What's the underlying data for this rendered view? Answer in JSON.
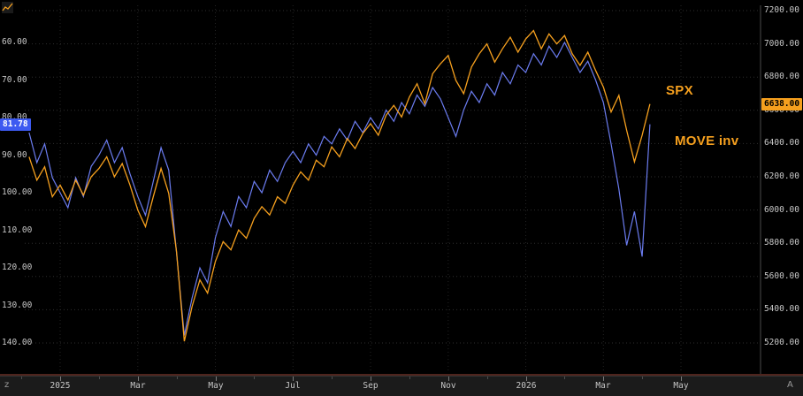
{
  "chart": {
    "series_labels": {
      "spx": "SPX",
      "move": "MOVE inv"
    },
    "last_values": {
      "spx": "6638.00",
      "move": "81.78"
    },
    "colors": {
      "spx_line": "#f6a01e",
      "move_line": "#6b7cf0",
      "label_text": "#f6a01e",
      "spx_box_bg": "#f6a01e",
      "spx_box_text": "#000000",
      "move_box_bg": "#3d5af1",
      "move_box_text": "#ffffff",
      "background": "#000000",
      "grid": "#2e2e2e",
      "axis_text": "#c8c8c8"
    },
    "corner_buttons": {
      "bottom_left": "z",
      "bottom_right": "A"
    }
  },
  "chart_data": {
    "type": "line",
    "title": "",
    "legend_position": "inline-right-annotations",
    "grid": "dotted",
    "x_unit": "months since 2025-01-01",
    "x_start": -0.8,
    "x_step": 0.2,
    "x_tick_labels": [
      "2025",
      "Mar",
      "May",
      "Jul",
      "Sep",
      "Nov",
      "2026",
      "Mar",
      "May"
    ],
    "x_tick_positions": [
      0,
      2,
      4,
      6,
      8,
      10,
      12,
      14,
      16
    ],
    "left_axis": {
      "series": "MOVE inv",
      "top": 60,
      "bottom": 140,
      "ticks": [
        60,
        70,
        80,
        90,
        100,
        110,
        120,
        130,
        140
      ],
      "note": "values increase downward (inverted MOVE index)"
    },
    "right_axis": {
      "series": "SPX",
      "top": 7200,
      "bottom": 5200,
      "ticks": [
        7200,
        7000,
        6800,
        6600,
        6400,
        6200,
        6000,
        5800,
        5600,
        5400,
        5200
      ]
    },
    "series": [
      {
        "name": "SPX",
        "axis": "right",
        "color": "#f6a01e",
        "last_value": 6638.0,
        "values": [
          6320,
          6180,
          6260,
          6080,
          6150,
          6060,
          6180,
          6090,
          6200,
          6250,
          6320,
          6200,
          6280,
          6150,
          6000,
          5900,
          6080,
          6250,
          6100,
          5750,
          5210,
          5420,
          5580,
          5500,
          5690,
          5810,
          5760,
          5880,
          5830,
          5950,
          6020,
          5970,
          6080,
          6040,
          6150,
          6230,
          6180,
          6300,
          6260,
          6380,
          6320,
          6430,
          6370,
          6460,
          6520,
          6450,
          6570,
          6630,
          6560,
          6680,
          6760,
          6640,
          6820,
          6880,
          6930,
          6780,
          6700,
          6860,
          6940,
          7000,
          6890,
          6970,
          7040,
          6950,
          7030,
          7080,
          6970,
          7060,
          7000,
          7050,
          6940,
          6870,
          6950,
          6840,
          6740,
          6590,
          6690,
          6480,
          6290,
          6450,
          6638
        ]
      },
      {
        "name": "MOVE inv",
        "axis": "left",
        "color": "#6b7cf0",
        "last_value": 81.78,
        "values": [
          84,
          92,
          87,
          96,
          100,
          104,
          96,
          101,
          93,
          90,
          86,
          92,
          88,
          95,
          101,
          106,
          97,
          88,
          94,
          116,
          138,
          128,
          120,
          124,
          112,
          105,
          109,
          101,
          104,
          97,
          100,
          94,
          97,
          92,
          89,
          92,
          87,
          90,
          85,
          87,
          83,
          86,
          81,
          84,
          80,
          83,
          78,
          81,
          76,
          79,
          74,
          77,
          72,
          75,
          80,
          85,
          78,
          73,
          76,
          71,
          74,
          68,
          71,
          66,
          68,
          63,
          66,
          61,
          64,
          60,
          64,
          68,
          65,
          70,
          76,
          87,
          99,
          114,
          105,
          117,
          81.78
        ]
      }
    ]
  }
}
